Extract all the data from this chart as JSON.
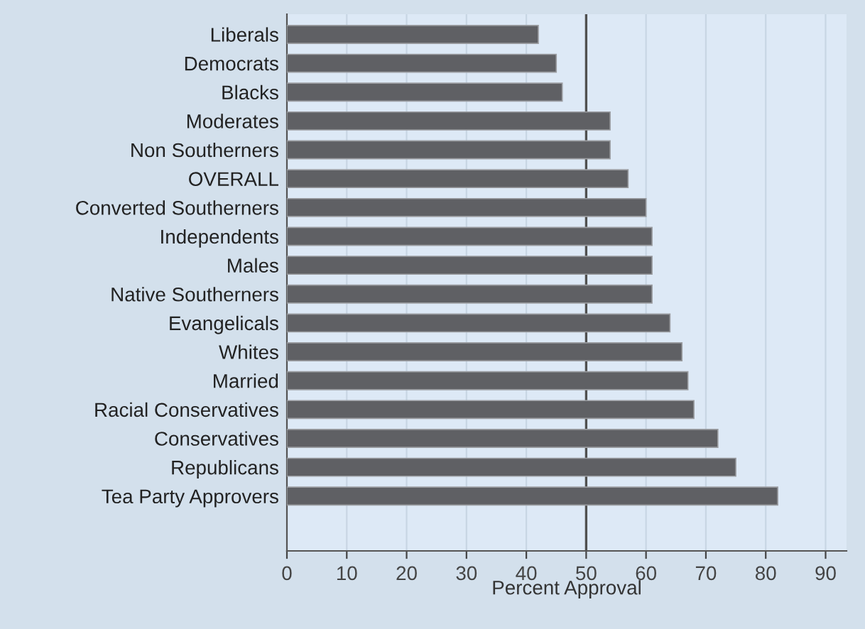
{
  "chart_data": {
    "type": "bar",
    "orientation": "horizontal",
    "xlabel": "Percent Approval",
    "categories": [
      "Liberals",
      "Democrats",
      "Blacks",
      "Moderates",
      "Non Southerners",
      "OVERALL",
      "Converted Southerners",
      "Independents",
      "Males",
      "Native Southerners",
      "Evangelicals",
      "Whites",
      "Married",
      "Racial Conservatives",
      "Conservatives",
      "Republicans",
      "Tea Party Approvers"
    ],
    "values": [
      42,
      45,
      46,
      54,
      54,
      57,
      60,
      61,
      61,
      61,
      64,
      66,
      67,
      68,
      72,
      75,
      82
    ],
    "color": "#5f6064",
    "xlim": [
      0,
      93.5
    ],
    "xticks": [
      0,
      10,
      20,
      30,
      40,
      50,
      60,
      70,
      80,
      90
    ],
    "grid": "x",
    "ref_lines": [
      {
        "axis": "x",
        "value": 50,
        "color": "#505050"
      }
    ]
  }
}
